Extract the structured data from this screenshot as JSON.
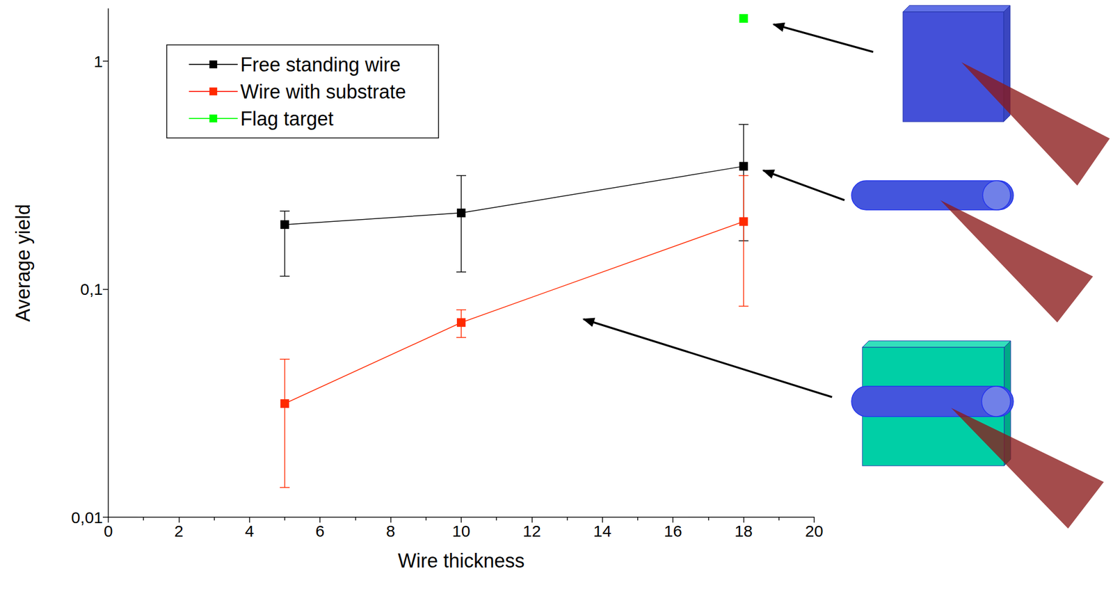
{
  "chart_data": {
    "type": "line",
    "x_label": "Wire thickness",
    "y_label": "Average yield",
    "xlim": [
      0,
      20
    ],
    "xticks": [
      0,
      2,
      4,
      6,
      8,
      10,
      12,
      14,
      16,
      18,
      20
    ],
    "ylim": [
      0.01,
      1.7
    ],
    "yticks": [
      {
        "value": 0.01,
        "label": "0,01"
      },
      {
        "value": 0.1,
        "label": "0,1"
      },
      1
    ],
    "log": "y",
    "grid": false,
    "legend": "upper left",
    "series": [
      {
        "name": "Free standing wire",
        "color": "#000000",
        "marker": "square",
        "x": [
          5,
          10,
          18
        ],
        "values": [
          0.192,
          0.216,
          0.346
        ],
        "error_low": [
          0.114,
          0.119,
          0.163
        ],
        "error_high": [
          0.22,
          0.315,
          0.528
        ]
      },
      {
        "name": "Wire with substrate",
        "color": "#ff2a00",
        "marker": "square",
        "x": [
          5,
          10,
          18
        ],
        "values": [
          0.0315,
          0.0714,
          0.198
        ],
        "error_low": [
          0.0135,
          0.0614,
          0.0842
        ],
        "error_high": [
          0.0493,
          0.0812,
          0.315
        ]
      },
      {
        "name": "Flag target",
        "color": "#00ff00",
        "marker": "square",
        "x": [
          18
        ],
        "values": [
          1.54
        ]
      }
    ]
  }
}
